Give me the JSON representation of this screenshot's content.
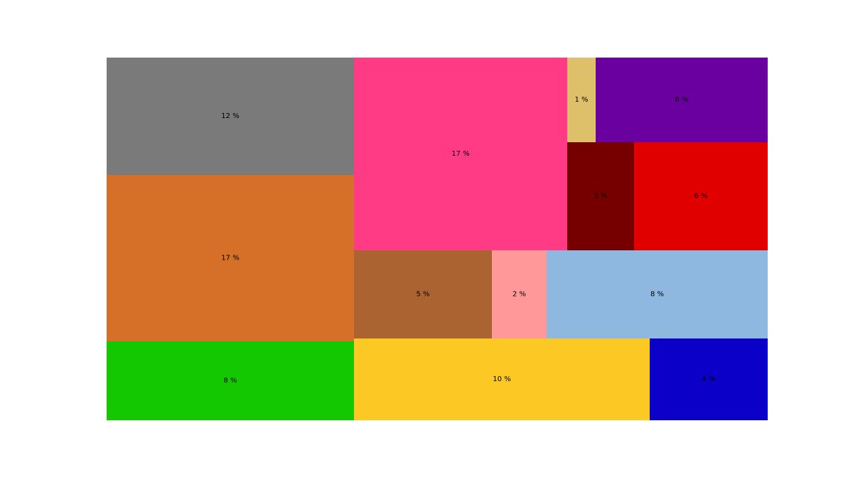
{
  "chart_data": {
    "type": "treemap",
    "value_suffix": " %",
    "tiles": [
      {
        "value": 12,
        "label": "12 %",
        "color": "#7a7a7a"
      },
      {
        "value": 17,
        "label": "17 %",
        "color": "#d66f28"
      },
      {
        "value": 8,
        "label": "8 %",
        "color": "#14c800"
      },
      {
        "value": 17,
        "label": "17 %",
        "color": "#ff3b86"
      },
      {
        "value": 1,
        "label": "1 %",
        "color": "#dfc06a"
      },
      {
        "value": 6,
        "label": "6 %",
        "color": "#6a00a0"
      },
      {
        "value": 3,
        "label": "3 %",
        "color": "#760000"
      },
      {
        "value": 6,
        "label": "6 %",
        "color": "#e10000"
      },
      {
        "value": 5,
        "label": "5 %",
        "color": "#ab6331"
      },
      {
        "value": 2,
        "label": "2 %",
        "color": "#ff9999"
      },
      {
        "value": 8,
        "label": "8 %",
        "color": "#8eb8e0"
      },
      {
        "value": 10,
        "label": "10 %",
        "color": "#fcc823"
      },
      {
        "value": 4,
        "label": "4 %",
        "color": "#0a00c8"
      }
    ]
  }
}
